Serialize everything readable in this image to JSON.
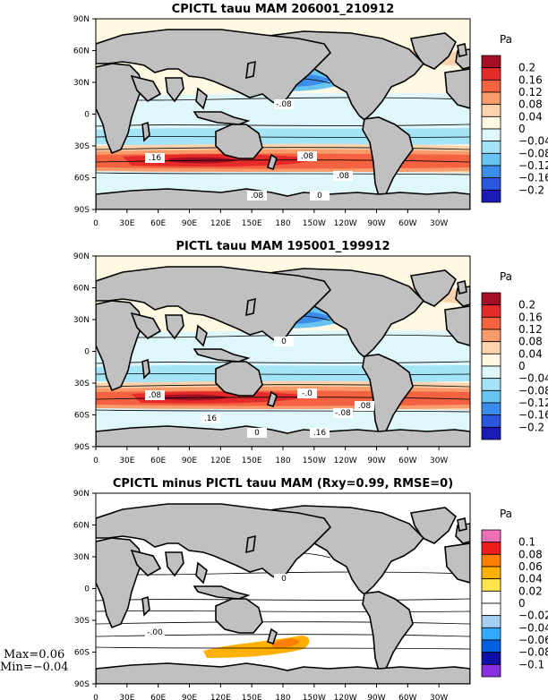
{
  "panels": [
    {
      "id": "cpictl",
      "title": "CPICTL tauu MAM 206001_210912",
      "unit": "Pa",
      "colorbar": {
        "labels": [
          "0.2",
          "0.16",
          "0.12",
          "0.08",
          "0.04",
          "0",
          "−0.04",
          "−0.08",
          "−0.12",
          "−0.16",
          "−0.2"
        ],
        "colors": [
          "#a50f24",
          "#e52a2a",
          "#f4623f",
          "#f89b6b",
          "#fcd3ad",
          "#fff8e3",
          "#dff6fb",
          "#a5e3f6",
          "#68c3f0",
          "#3c8dea",
          "#2a56e0",
          "#1a1ab8"
        ]
      },
      "contour_labels": [
        "-.08",
        ".16",
        ".08",
        ".08",
        ".08",
        "0"
      ],
      "stats": null
    },
    {
      "id": "pictl",
      "title": "PICTL tauu MAM 195001_199912",
      "unit": "Pa",
      "colorbar": {
        "labels": [
          "0.2",
          "0.16",
          "0.12",
          "0.08",
          "0.04",
          "0",
          "−0.04",
          "−0.08",
          "−0.12",
          "−0.16",
          "−0.2"
        ],
        "colors": [
          "#a50f24",
          "#e52a2a",
          "#f4623f",
          "#f89b6b",
          "#fcd3ad",
          "#fff8e3",
          "#dff6fb",
          "#a5e3f6",
          "#68c3f0",
          "#3c8dea",
          "#2a56e0",
          "#1a1ab8"
        ]
      },
      "contour_labels": [
        "0",
        ".08",
        "-.0",
        "-.08",
        "0",
        ".16",
        ".16",
        ".08"
      ],
      "stats": null
    },
    {
      "id": "diff",
      "title": "CPICTL minus PICTL tauu MAM (Rxy=0.99, RMSE=0)",
      "unit": "Pa",
      "colorbar": {
        "labels": [
          "0.1",
          "0.08",
          "0.06",
          "0.04",
          "0.02",
          "0",
          "−0.02",
          "−0.04",
          "−0.06",
          "−0.08",
          "−0.1"
        ],
        "colors": [
          "#f070b8",
          "#ee1c1c",
          "#ff7f00",
          "#ffb000",
          "#ffe54d",
          "#ffffff",
          "#ffffff",
          "#a7d0f5",
          "#33aaff",
          "#0060e0",
          "#1010a8",
          "#8830e0"
        ]
      },
      "contour_labels": [
        "0",
        "-.00"
      ],
      "stats": {
        "max": "Max=0.06",
        "min": "Min=−0.04"
      }
    }
  ],
  "axes": {
    "lat_ticks": [
      "90N",
      "60N",
      "30N",
      "0",
      "30S",
      "60S",
      "90S"
    ],
    "lon_ticks": [
      "0",
      "30E",
      "60E",
      "90E",
      "120E",
      "150E",
      "180",
      "150W",
      "120W",
      "90W",
      "60W",
      "30W"
    ]
  },
  "colors": {
    "land": "#c0c0c0",
    "coast": "#000000",
    "ocean_neutral": "#ffffff"
  }
}
